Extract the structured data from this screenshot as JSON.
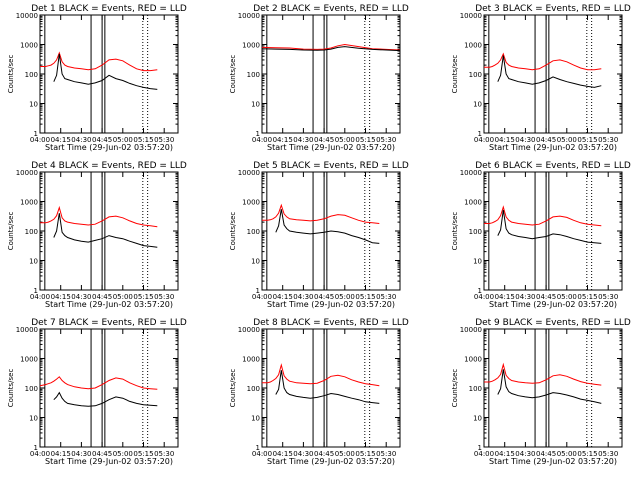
{
  "chart_data": {
    "type": "line",
    "layout": "3x3 grid",
    "xlabel": "Start Time (29-Jun-02 03:57:20)",
    "ylabel": "Counts/sec",
    "yscale": "log",
    "ylim": [
      1,
      10000
    ],
    "ytick_labels": [
      "1",
      "10",
      "100",
      "1000",
      "10000"
    ],
    "xlim_minutes": [
      0,
      100
    ],
    "xtick_labels": [
      "04:00",
      "04:15",
      "04:30",
      "04:45",
      "05:00",
      "05:15",
      "05:30"
    ],
    "xtick_minutes": [
      0,
      15,
      30,
      45,
      60,
      75,
      90
    ],
    "legend_text": "BLACK = Events, RED = LLD",
    "series_names": [
      "Events",
      "LLD"
    ],
    "series_colors": {
      "Events": "#000000",
      "LLD": "#ff0000"
    },
    "solid_markers_minutes": [
      3.5,
      37,
      45,
      47
    ],
    "dotted_markers_minutes": [
      74.5,
      78
    ],
    "panels": [
      {
        "title": "Det 1 BLACK = Events, RED = LLD",
        "events": {
          "times": [
            0,
            4,
            6,
            8,
            10,
            12,
            14,
            16,
            18,
            20,
            25,
            30,
            35,
            40,
            45,
            50,
            55,
            60,
            65,
            70,
            75,
            80,
            85,
            90,
            95,
            100
          ],
          "values": [
            null,
            null,
            null,
            null,
            55,
            90,
            480,
            100,
            70,
            65,
            55,
            50,
            45,
            50,
            60,
            90,
            70,
            60,
            48,
            40,
            35,
            32,
            30,
            null,
            null,
            null
          ]
        },
        "lld": {
          "times": [
            0,
            4,
            6,
            8,
            10,
            12,
            14,
            16,
            18,
            20,
            25,
            30,
            35,
            40,
            45,
            50,
            55,
            60,
            65,
            70,
            75,
            80,
            85,
            90,
            95,
            100
          ],
          "values": [
            180,
            180,
            190,
            200,
            230,
            300,
            520,
            260,
            200,
            180,
            160,
            150,
            140,
            150,
            200,
            300,
            320,
            280,
            200,
            150,
            130,
            130,
            140,
            null,
            null,
            null
          ]
        }
      },
      {
        "title": "Det 2 BLACK = Events, RED = LLD",
        "events": {
          "times": [
            0,
            10,
            20,
            30,
            40,
            45,
            50,
            55,
            60,
            70,
            80,
            90,
            100
          ],
          "values": [
            720,
            700,
            680,
            650,
            640,
            650,
            700,
            800,
            850,
            750,
            680,
            650,
            620
          ]
        },
        "lld": {
          "times": [
            0,
            10,
            20,
            30,
            40,
            45,
            50,
            55,
            60,
            70,
            80,
            90,
            100
          ],
          "values": [
            800,
            780,
            760,
            700,
            680,
            700,
            760,
            900,
            1000,
            850,
            720,
            680,
            650
          ]
        }
      },
      {
        "title": "Det 3 BLACK = Events, RED = LLD",
        "events": {
          "times": [
            0,
            4,
            6,
            8,
            10,
            12,
            14,
            16,
            18,
            20,
            25,
            30,
            35,
            40,
            45,
            50,
            55,
            60,
            65,
            70,
            75,
            80,
            85,
            90,
            95,
            100
          ],
          "values": [
            null,
            null,
            null,
            null,
            55,
            90,
            420,
            100,
            70,
            65,
            55,
            50,
            45,
            50,
            60,
            80,
            65,
            55,
            48,
            42,
            38,
            35,
            40,
            null,
            null,
            null
          ]
        },
        "lld": {
          "times": [
            0,
            4,
            6,
            8,
            10,
            12,
            14,
            16,
            18,
            20,
            25,
            30,
            35,
            40,
            45,
            50,
            55,
            60,
            65,
            70,
            75,
            80,
            85,
            90,
            95,
            100
          ],
          "values": [
            170,
            170,
            180,
            200,
            230,
            300,
            480,
            250,
            200,
            180,
            160,
            150,
            140,
            150,
            200,
            280,
            300,
            260,
            200,
            160,
            140,
            140,
            150,
            null,
            null,
            null
          ]
        }
      },
      {
        "title": "Det 4 BLACK = Events, RED = LLD",
        "events": {
          "times": [
            0,
            4,
            6,
            8,
            10,
            12,
            14,
            16,
            18,
            20,
            25,
            30,
            35,
            40,
            45,
            50,
            55,
            60,
            65,
            70,
            75,
            80,
            85,
            90,
            95,
            100
          ],
          "values": [
            null,
            null,
            null,
            null,
            60,
            100,
            400,
            90,
            70,
            60,
            50,
            45,
            42,
            48,
            55,
            70,
            60,
            55,
            45,
            38,
            32,
            30,
            28,
            null,
            null,
            null
          ]
        },
        "lld": {
          "times": [
            0,
            4,
            6,
            8,
            10,
            12,
            14,
            16,
            18,
            20,
            25,
            30,
            35,
            40,
            45,
            50,
            55,
            60,
            65,
            70,
            75,
            80,
            85,
            90,
            95,
            100
          ],
          "values": [
            190,
            190,
            200,
            220,
            250,
            330,
            620,
            280,
            220,
            200,
            180,
            170,
            160,
            170,
            220,
            300,
            320,
            280,
            220,
            180,
            160,
            150,
            140,
            null,
            null,
            null
          ]
        }
      },
      {
        "title": "Det 5 BLACK = Events, RED = LLD",
        "events": {
          "times": [
            0,
            4,
            6,
            8,
            10,
            12,
            14,
            16,
            18,
            20,
            25,
            30,
            35,
            40,
            45,
            50,
            55,
            60,
            65,
            70,
            75,
            80,
            85,
            90,
            95,
            100
          ],
          "values": [
            null,
            null,
            null,
            null,
            90,
            150,
            550,
            160,
            120,
            100,
            90,
            85,
            80,
            85,
            90,
            100,
            95,
            85,
            70,
            60,
            50,
            40,
            38,
            null,
            null,
            null
          ]
        },
        "lld": {
          "times": [
            0,
            4,
            6,
            8,
            10,
            12,
            14,
            16,
            18,
            20,
            25,
            30,
            35,
            40,
            45,
            50,
            55,
            60,
            65,
            70,
            75,
            80,
            85,
            90,
            95,
            100
          ],
          "values": [
            230,
            230,
            240,
            260,
            300,
            400,
            750,
            380,
            300,
            260,
            240,
            230,
            220,
            230,
            260,
            320,
            360,
            340,
            280,
            230,
            200,
            190,
            180,
            null,
            null,
            null
          ]
        }
      },
      {
        "title": "Det 6 BLACK = Events, RED = LLD",
        "events": {
          "times": [
            0,
            4,
            6,
            8,
            10,
            12,
            14,
            16,
            18,
            20,
            25,
            30,
            35,
            40,
            45,
            50,
            55,
            60,
            65,
            70,
            75,
            80,
            85,
            90,
            95,
            100
          ],
          "values": [
            null,
            null,
            null,
            null,
            70,
            110,
            520,
            120,
            85,
            75,
            65,
            60,
            55,
            60,
            65,
            80,
            75,
            65,
            55,
            48,
            42,
            40,
            38,
            null,
            null,
            null
          ]
        },
        "lld": {
          "times": [
            0,
            4,
            6,
            8,
            10,
            12,
            14,
            16,
            18,
            20,
            25,
            30,
            35,
            40,
            45,
            50,
            55,
            60,
            65,
            70,
            75,
            80,
            85,
            90,
            95,
            100
          ],
          "values": [
            180,
            180,
            190,
            210,
            240,
            330,
            650,
            300,
            230,
            200,
            180,
            170,
            160,
            170,
            220,
            300,
            320,
            290,
            230,
            190,
            170,
            160,
            150,
            null,
            null,
            null
          ]
        }
      },
      {
        "title": "Det 7 BLACK = Events, RED = LLD",
        "events": {
          "times": [
            0,
            4,
            6,
            8,
            10,
            12,
            14,
            16,
            18,
            20,
            25,
            30,
            35,
            40,
            45,
            50,
            55,
            60,
            65,
            70,
            75,
            80,
            85,
            90,
            95,
            100
          ],
          "values": [
            null,
            null,
            null,
            null,
            40,
            50,
            70,
            45,
            35,
            30,
            27,
            25,
            24,
            25,
            30,
            40,
            50,
            45,
            35,
            30,
            27,
            26,
            25,
            null,
            null,
            null
          ]
        },
        "lld": {
          "times": [
            0,
            4,
            6,
            8,
            10,
            12,
            14,
            16,
            18,
            20,
            25,
            30,
            35,
            40,
            45,
            50,
            55,
            60,
            65,
            70,
            75,
            80,
            85,
            90,
            95,
            100
          ],
          "values": [
            120,
            130,
            140,
            150,
            170,
            200,
            240,
            180,
            150,
            130,
            110,
            100,
            95,
            100,
            130,
            180,
            220,
            200,
            150,
            120,
            100,
            95,
            90,
            null,
            null,
            null
          ]
        }
      },
      {
        "title": "Det 8 BLACK = Events, RED = LLD",
        "events": {
          "times": [
            0,
            4,
            6,
            8,
            10,
            12,
            14,
            16,
            18,
            20,
            25,
            30,
            35,
            40,
            45,
            50,
            55,
            60,
            65,
            70,
            75,
            80,
            85,
            90,
            95,
            100
          ],
          "values": [
            null,
            null,
            null,
            null,
            60,
            90,
            400,
            100,
            70,
            60,
            52,
            48,
            45,
            48,
            55,
            65,
            60,
            52,
            45,
            40,
            34,
            32,
            30,
            null,
            null,
            null
          ]
        },
        "lld": {
          "times": [
            0,
            4,
            6,
            8,
            10,
            12,
            14,
            16,
            18,
            20,
            25,
            30,
            35,
            40,
            45,
            50,
            55,
            60,
            65,
            70,
            75,
            80,
            85,
            90,
            95,
            100
          ],
          "values": [
            150,
            150,
            160,
            180,
            210,
            280,
            600,
            260,
            200,
            170,
            150,
            145,
            140,
            145,
            180,
            250,
            270,
            240,
            190,
            160,
            140,
            130,
            120,
            null,
            null,
            null
          ]
        }
      },
      {
        "title": "Det 9 BLACK = Events, RED = LLD",
        "events": {
          "times": [
            0,
            4,
            6,
            8,
            10,
            12,
            14,
            16,
            18,
            20,
            25,
            30,
            35,
            40,
            45,
            50,
            55,
            60,
            65,
            70,
            75,
            80,
            85,
            90,
            95,
            100
          ],
          "values": [
            null,
            null,
            null,
            null,
            60,
            95,
            430,
            110,
            75,
            65,
            55,
            50,
            47,
            50,
            58,
            70,
            65,
            58,
            50,
            42,
            38,
            34,
            30,
            null,
            null,
            null
          ]
        },
        "lld": {
          "times": [
            0,
            4,
            6,
            8,
            10,
            12,
            14,
            16,
            18,
            20,
            25,
            30,
            35,
            40,
            45,
            50,
            55,
            60,
            65,
            70,
            75,
            80,
            85,
            90,
            95,
            100
          ],
          "values": [
            160,
            160,
            170,
            190,
            220,
            290,
            620,
            270,
            210,
            180,
            160,
            150,
            145,
            150,
            190,
            260,
            280,
            250,
            200,
            165,
            145,
            135,
            125,
            null,
            null,
            null
          ]
        }
      }
    ]
  }
}
